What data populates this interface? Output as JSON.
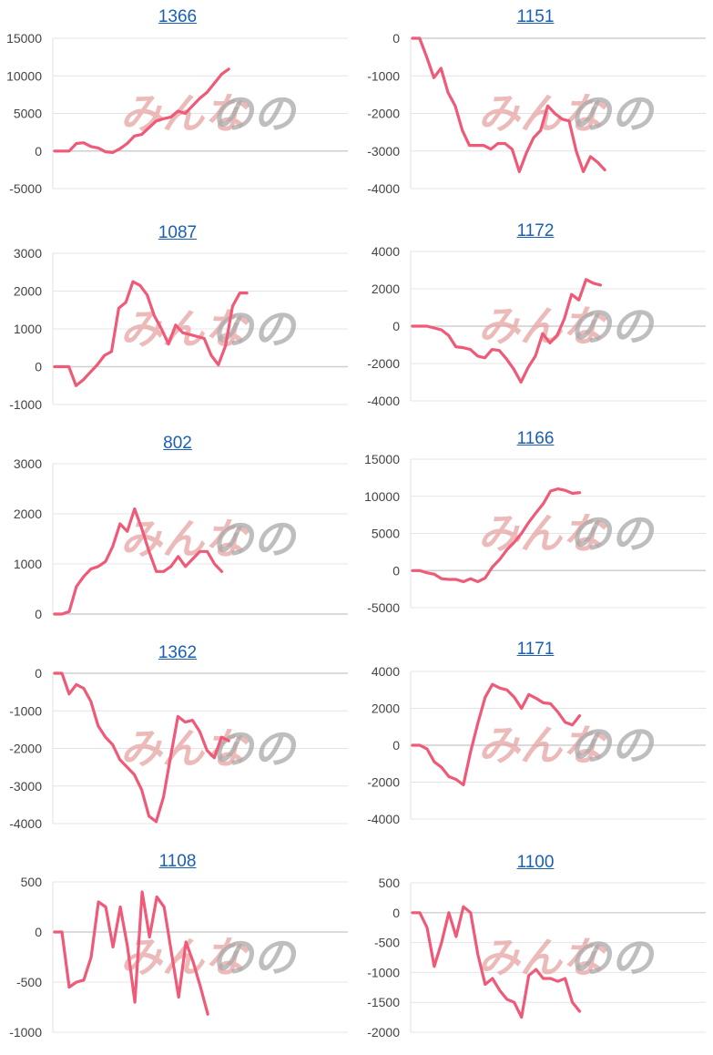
{
  "watermark": {
    "logo_text_a": "みんな",
    "logo_text_b": "の"
  },
  "colors": {
    "line": "#ee5a78",
    "title_link": "#1a5fb4"
  },
  "chart_data": [
    {
      "type": "line",
      "title": "1366",
      "ylim": [
        -5000,
        15000
      ],
      "yticks": [
        15000,
        10000,
        5000,
        0,
        -5000
      ],
      "values": [
        0,
        0,
        0,
        1000,
        1100,
        600,
        400,
        -100,
        -200,
        300,
        1000,
        2000,
        2200,
        3100,
        4000,
        4300,
        4500,
        5300,
        5000,
        6000,
        7000,
        7800,
        9000,
        10200,
        10900
      ]
    },
    {
      "type": "line",
      "title": "1151",
      "ylim": [
        -4000,
        0
      ],
      "yticks": [
        0,
        -1000,
        -2000,
        -3000,
        -4000
      ],
      "values": [
        0,
        0,
        -500,
        -1050,
        -800,
        -1450,
        -1800,
        -2450,
        -2850,
        -2850,
        -2850,
        -2950,
        -2800,
        -2800,
        -2950,
        -3550,
        -3050,
        -2650,
        -2450,
        -1800,
        -2000,
        -2150,
        -2200,
        -3000,
        -3550,
        -3150,
        -3300,
        -3500
      ]
    },
    {
      "type": "line",
      "title": "1087",
      "ylim": [
        -1000,
        3000
      ],
      "yticks": [
        3000,
        2000,
        1000,
        0,
        -1000
      ],
      "values": [
        0,
        0,
        0,
        -500,
        -350,
        -150,
        50,
        300,
        400,
        1550,
        1700,
        2250,
        2150,
        1900,
        1350,
        1000,
        600,
        1100,
        900,
        850,
        800,
        750,
        300,
        50,
        550,
        1600,
        1950,
        1950
      ]
    },
    {
      "type": "line",
      "title": "1172",
      "ylim": [
        -4000,
        4000
      ],
      "yticks": [
        4000,
        2000,
        0,
        -2000,
        -4000
      ],
      "values": [
        0,
        0,
        0,
        -100,
        -200,
        -500,
        -1100,
        -1150,
        -1250,
        -1600,
        -1700,
        -1250,
        -1300,
        -1750,
        -2300,
        -3000,
        -2200,
        -1600,
        -400,
        -900,
        -500,
        400,
        1700,
        1400,
        2500,
        2300,
        2200
      ]
    },
    {
      "type": "line",
      "title": "802",
      "ylim": [
        0,
        3000
      ],
      "yticks": [
        3000,
        2000,
        1000,
        0
      ],
      "values": [
        0,
        0,
        50,
        550,
        750,
        900,
        950,
        1050,
        1350,
        1800,
        1650,
        2100,
        1700,
        1250,
        850,
        850,
        950,
        1150,
        950,
        1100,
        1250,
        1250,
        1000,
        850
      ]
    },
    {
      "type": "line",
      "title": "1166",
      "ylim": [
        -5000,
        15000
      ],
      "yticks": [
        15000,
        10000,
        5000,
        0,
        -5000
      ],
      "values": [
        0,
        0,
        -300,
        -500,
        -1100,
        -1200,
        -1200,
        -1500,
        -1100,
        -1500,
        -1000,
        500,
        1500,
        2800,
        3800,
        5000,
        6500,
        7800,
        9000,
        10700,
        11000,
        10800,
        10400,
        10500
      ]
    },
    {
      "type": "line",
      "title": "1362",
      "ylim": [
        -4000,
        0
      ],
      "yticks": [
        0,
        -1000,
        -2000,
        -3000,
        -4000
      ],
      "values": [
        0,
        0,
        -550,
        -300,
        -400,
        -750,
        -1400,
        -1700,
        -1900,
        -2300,
        -2500,
        -2700,
        -3100,
        -3800,
        -3950,
        -3300,
        -2200,
        -1150,
        -1300,
        -1250,
        -1550,
        -2050,
        -2250,
        -1700,
        -1800
      ]
    },
    {
      "type": "line",
      "title": "1171",
      "ylim": [
        -4000,
        4000
      ],
      "yticks": [
        4000,
        2000,
        0,
        -2000,
        -4000
      ],
      "values": [
        0,
        0,
        -200,
        -900,
        -1200,
        -1700,
        -1850,
        -2150,
        -350,
        1200,
        2600,
        3300,
        3100,
        3000,
        2600,
        2000,
        2750,
        2550,
        2300,
        2250,
        1800,
        1250,
        1100,
        1600
      ]
    },
    {
      "type": "line",
      "title": "1108",
      "ylim": [
        -1000,
        500
      ],
      "yticks": [
        500,
        0,
        -500,
        -1000
      ],
      "values": [
        0,
        0,
        -550,
        -500,
        -480,
        -250,
        300,
        250,
        -150,
        250,
        -150,
        -700,
        400,
        -50,
        350,
        250,
        -200,
        -650,
        -100,
        -300,
        -550,
        -820
      ]
    },
    {
      "type": "line",
      "title": "1100",
      "ylim": [
        -2000,
        500
      ],
      "yticks": [
        500,
        0,
        -500,
        -1000,
        -1500,
        -2000
      ],
      "values": [
        0,
        0,
        -250,
        -900,
        -500,
        0,
        -400,
        100,
        0,
        -700,
        -1200,
        -1100,
        -1300,
        -1450,
        -1500,
        -1750,
        -1050,
        -950,
        -1100,
        -1100,
        -1150,
        -1100,
        -1500,
        -1650
      ]
    }
  ]
}
